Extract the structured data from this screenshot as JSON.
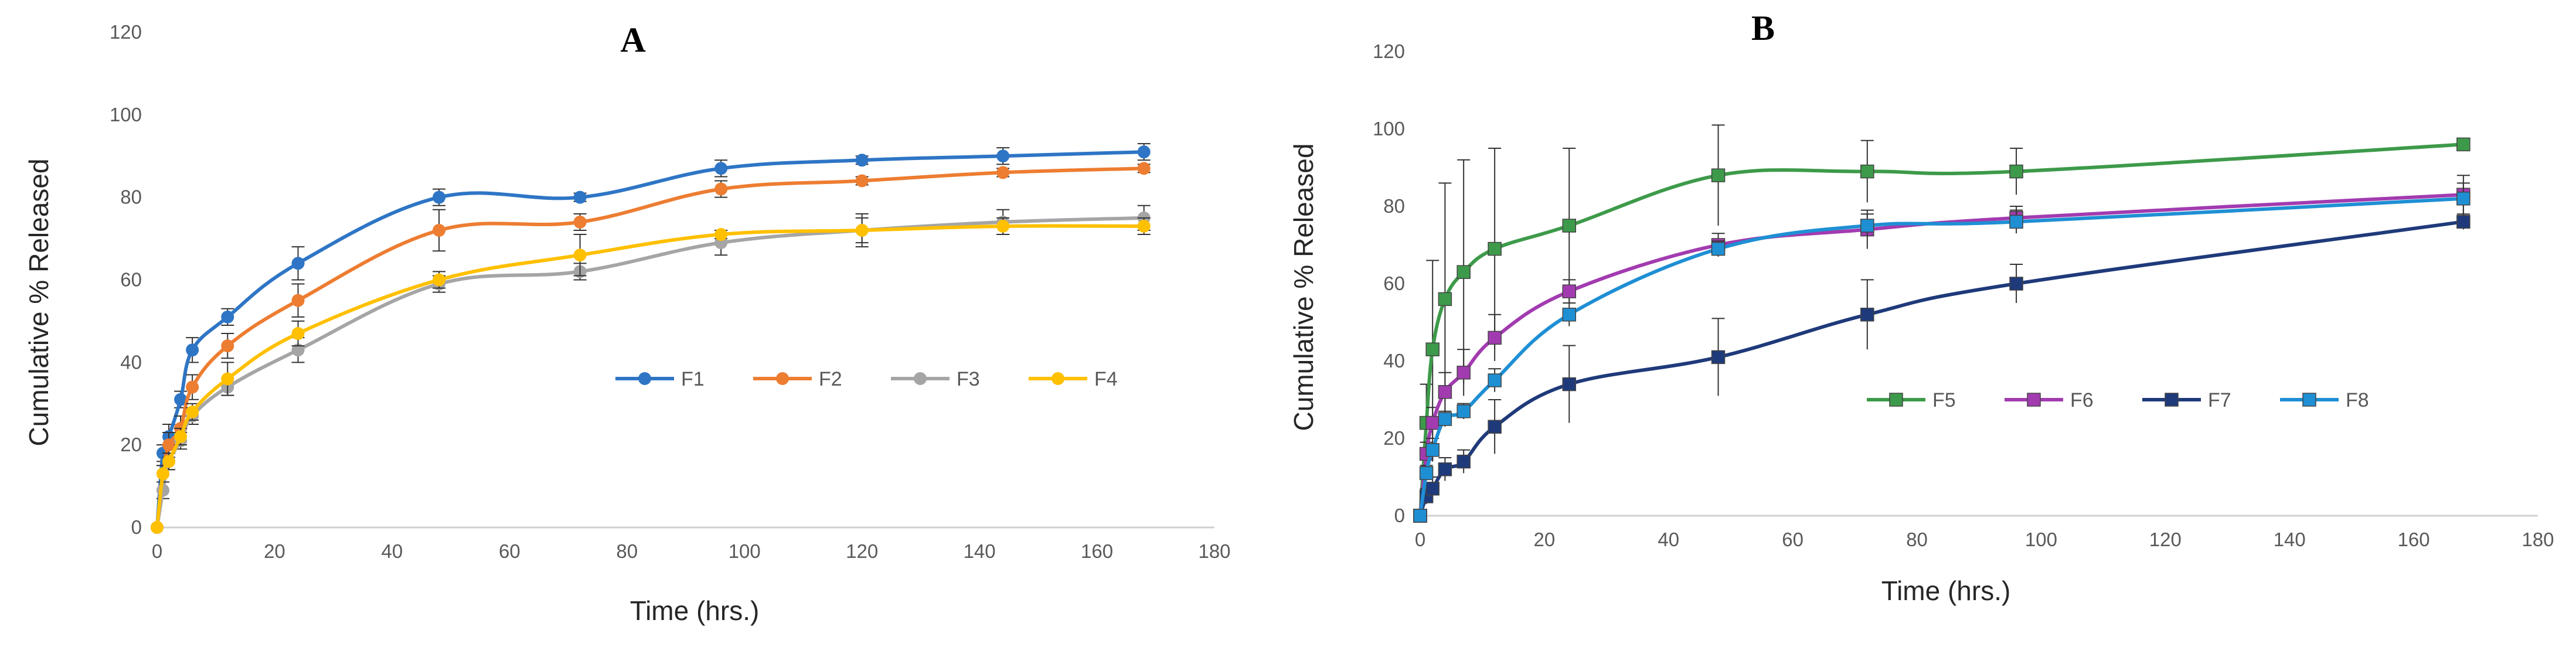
{
  "chart_data": [
    {
      "type": "line",
      "title": "A",
      "xlabel": "Time (hrs.)",
      "ylabel": "Cumulative % Released",
      "xlim": [
        0,
        180
      ],
      "ylim": [
        0,
        120
      ],
      "xticks": [
        "0",
        "20",
        "40",
        "60",
        "80",
        "100",
        "120",
        "140",
        "160",
        "180"
      ],
      "yticks": [
        "0",
        "20",
        "40",
        "60",
        "80",
        "100",
        "120"
      ],
      "grid": false,
      "legend": "center-right",
      "x": [
        0,
        1,
        2,
        4,
        6,
        12,
        24,
        48,
        72,
        96,
        120,
        144,
        168
      ],
      "series": [
        {
          "name": "F1",
          "color": "#2E75C5",
          "values": [
            0,
            18,
            22,
            31,
            43,
            51,
            64,
            80,
            80,
            87,
            89,
            90,
            91
          ],
          "errors": [
            0,
            2,
            3,
            2,
            3,
            2,
            4,
            2,
            1,
            2,
            1,
            2,
            2
          ]
        },
        {
          "name": "F2",
          "color": "#ED7D31",
          "values": [
            0,
            13,
            20,
            24,
            34,
            44,
            55,
            72,
            74,
            82,
            84,
            86,
            87
          ],
          "errors": [
            0,
            2,
            3,
            3,
            3,
            3,
            4,
            5,
            2,
            2,
            1,
            1,
            1
          ]
        },
        {
          "name": "F3",
          "color": "#A5A5A5",
          "values": [
            0,
            9,
            16,
            21,
            27,
            34,
            43,
            59,
            62,
            69,
            72,
            74,
            75
          ],
          "errors": [
            0,
            2,
            2,
            2,
            2,
            2,
            3,
            2,
            2,
            3,
            3,
            3,
            3
          ]
        },
        {
          "name": "F4",
          "color": "#FFC000",
          "values": [
            0,
            13,
            16,
            22,
            28,
            36,
            47,
            60,
            66,
            71,
            72,
            73,
            73
          ],
          "errors": [
            0,
            2,
            2,
            2,
            2,
            4,
            3,
            2,
            5,
            1,
            4,
            2,
            2
          ]
        }
      ]
    },
    {
      "type": "line",
      "title": "B",
      "xlabel": "Time (hrs.)",
      "ylabel": "Cumulative % Released",
      "xlim": [
        0,
        180
      ],
      "ylim": [
        0,
        120
      ],
      "xticks": [
        "0",
        "20",
        "40",
        "60",
        "80",
        "100",
        "120",
        "140",
        "160",
        "180"
      ],
      "yticks": [
        "0",
        "20",
        "40",
        "60",
        "80",
        "100",
        "120"
      ],
      "grid": false,
      "legend": "center-right",
      "x": [
        0,
        1,
        2,
        4,
        7,
        12,
        24,
        48,
        72,
        96,
        168
      ],
      "series": [
        {
          "name": "F5",
          "color": "#3D9A4A",
          "values": [
            0,
            24,
            43,
            56,
            63,
            69,
            75,
            88,
            89,
            89,
            96
          ],
          "errors": [
            0,
            10,
            23,
            30,
            29,
            26,
            20,
            13,
            8,
            6,
            1
          ]
        },
        {
          "name": "F6",
          "color": "#A23BB0",
          "values": [
            0,
            16,
            24,
            32,
            37,
            46,
            58,
            70,
            74,
            77,
            83
          ],
          "errors": [
            0,
            3,
            4,
            5,
            6,
            6,
            3,
            3,
            5,
            3,
            5
          ]
        },
        {
          "name": "F7",
          "color": "#1F3A7A",
          "values": [
            0,
            5,
            7,
            12,
            14,
            23,
            34,
            41,
            52,
            60,
            76
          ],
          "errors": [
            0,
            2,
            3,
            3,
            3,
            7,
            10,
            10,
            9,
            5,
            2
          ]
        },
        {
          "name": "F8",
          "color": "#1F8FD4",
          "values": [
            0,
            11,
            17,
            25,
            27,
            35,
            52,
            69,
            75,
            76,
            82
          ],
          "errors": [
            0,
            2,
            3,
            2,
            2,
            3,
            3,
            2,
            3,
            3,
            4
          ]
        }
      ]
    }
  ]
}
